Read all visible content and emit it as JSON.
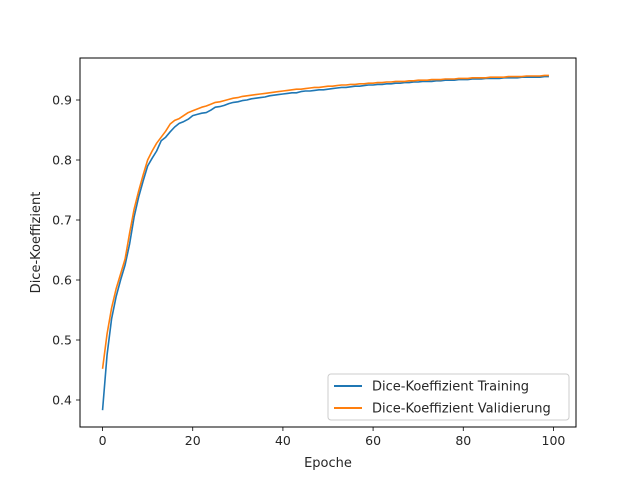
{
  "chart_data": {
    "type": "line",
    "title": "",
    "xlabel": "Epoche",
    "ylabel": "Dice-Koeffizient",
    "xlim": [
      -5,
      105
    ],
    "ylim": [
      0.355,
      0.97
    ],
    "xticks": [
      0,
      20,
      40,
      60,
      80,
      100
    ],
    "yticks": [
      0.4,
      0.5,
      0.6,
      0.7,
      0.8,
      0.9
    ],
    "xtick_labels": [
      "0",
      "20",
      "40",
      "60",
      "80",
      "100"
    ],
    "ytick_labels": [
      "0.4",
      "0.5",
      "0.6",
      "0.7",
      "0.8",
      "0.9"
    ],
    "grid": false,
    "legend_position": "lower-right",
    "series": [
      {
        "name": "Dice-Koeffizient Training",
        "color": "#1f77b4",
        "x": [
          0,
          1,
          2,
          3,
          4,
          5,
          6,
          7,
          8,
          9,
          10,
          11,
          12,
          13,
          14,
          15,
          16,
          17,
          18,
          19,
          20,
          21,
          22,
          23,
          24,
          25,
          26,
          27,
          28,
          29,
          30,
          31,
          32,
          33,
          34,
          35,
          36,
          37,
          38,
          39,
          40,
          41,
          42,
          43,
          44,
          45,
          46,
          47,
          48,
          49,
          50,
          51,
          52,
          53,
          54,
          55,
          56,
          57,
          58,
          59,
          60,
          61,
          62,
          63,
          64,
          65,
          66,
          67,
          68,
          69,
          70,
          71,
          72,
          73,
          74,
          75,
          76,
          77,
          78,
          79,
          80,
          81,
          82,
          83,
          84,
          85,
          86,
          87,
          88,
          89,
          90,
          91,
          92,
          93,
          94,
          95,
          96,
          97,
          98,
          99
        ],
        "y": [
          0.383,
          0.475,
          0.535,
          0.572,
          0.6,
          0.625,
          0.66,
          0.705,
          0.738,
          0.765,
          0.79,
          0.803,
          0.815,
          0.832,
          0.838,
          0.847,
          0.855,
          0.861,
          0.864,
          0.868,
          0.874,
          0.876,
          0.878,
          0.879,
          0.883,
          0.888,
          0.889,
          0.891,
          0.894,
          0.896,
          0.897,
          0.899,
          0.9,
          0.902,
          0.903,
          0.904,
          0.905,
          0.907,
          0.908,
          0.909,
          0.91,
          0.911,
          0.912,
          0.912,
          0.914,
          0.915,
          0.915,
          0.916,
          0.917,
          0.917,
          0.918,
          0.919,
          0.92,
          0.921,
          0.921,
          0.922,
          0.923,
          0.923,
          0.924,
          0.925,
          0.925,
          0.926,
          0.926,
          0.927,
          0.927,
          0.928,
          0.928,
          0.929,
          0.929,
          0.93,
          0.93,
          0.931,
          0.931,
          0.931,
          0.932,
          0.932,
          0.933,
          0.933,
          0.933,
          0.934,
          0.934,
          0.934,
          0.935,
          0.935,
          0.935,
          0.936,
          0.936,
          0.936,
          0.936,
          0.937,
          0.937,
          0.937,
          0.937,
          0.938,
          0.938,
          0.938,
          0.938,
          0.938,
          0.939,
          0.939
        ]
      },
      {
        "name": "Dice-Koeffizient Validierung",
        "color": "#ff7f0e",
        "x": [
          0,
          1,
          2,
          3,
          4,
          5,
          6,
          7,
          8,
          9,
          10,
          11,
          12,
          13,
          14,
          15,
          16,
          17,
          18,
          19,
          20,
          21,
          22,
          23,
          24,
          25,
          26,
          27,
          28,
          29,
          30,
          31,
          32,
          33,
          34,
          35,
          36,
          37,
          38,
          39,
          40,
          41,
          42,
          43,
          44,
          45,
          46,
          47,
          48,
          49,
          50,
          51,
          52,
          53,
          54,
          55,
          56,
          57,
          58,
          59,
          60,
          61,
          62,
          63,
          64,
          65,
          66,
          67,
          68,
          69,
          70,
          71,
          72,
          73,
          74,
          75,
          76,
          77,
          78,
          79,
          80,
          81,
          82,
          83,
          84,
          85,
          86,
          87,
          88,
          89,
          90,
          91,
          92,
          93,
          94,
          95,
          96,
          97,
          98,
          99
        ],
        "y": [
          0.452,
          0.51,
          0.553,
          0.585,
          0.61,
          0.635,
          0.678,
          0.718,
          0.748,
          0.775,
          0.8,
          0.815,
          0.828,
          0.838,
          0.848,
          0.86,
          0.866,
          0.869,
          0.874,
          0.879,
          0.882,
          0.885,
          0.888,
          0.89,
          0.893,
          0.896,
          0.897,
          0.899,
          0.901,
          0.903,
          0.904,
          0.906,
          0.907,
          0.908,
          0.909,
          0.91,
          0.911,
          0.912,
          0.913,
          0.914,
          0.915,
          0.916,
          0.917,
          0.918,
          0.918,
          0.919,
          0.92,
          0.921,
          0.921,
          0.922,
          0.923,
          0.923,
          0.924,
          0.925,
          0.925,
          0.926,
          0.926,
          0.927,
          0.927,
          0.928,
          0.928,
          0.929,
          0.929,
          0.93,
          0.93,
          0.931,
          0.931,
          0.931,
          0.932,
          0.932,
          0.933,
          0.933,
          0.933,
          0.934,
          0.934,
          0.934,
          0.935,
          0.935,
          0.935,
          0.936,
          0.936,
          0.936,
          0.937,
          0.937,
          0.937,
          0.937,
          0.938,
          0.938,
          0.938,
          0.938,
          0.939,
          0.939,
          0.939,
          0.939,
          0.94,
          0.94,
          0.94,
          0.94,
          0.941,
          0.941
        ]
      }
    ]
  }
}
